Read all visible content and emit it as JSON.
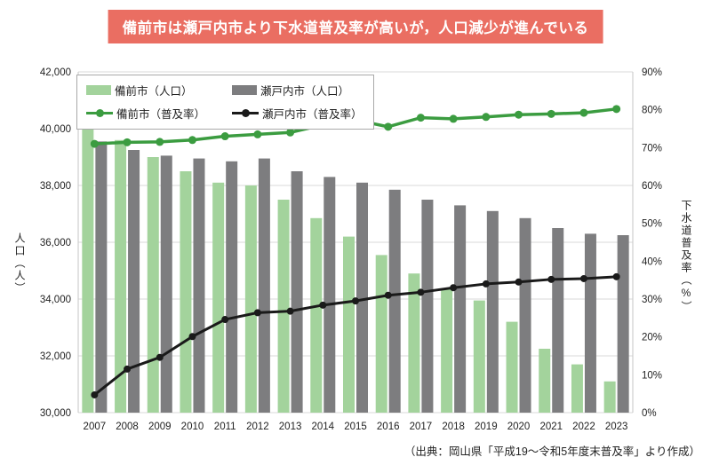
{
  "title": "備前市は瀬戸内市より下水道普及率が高いが，人口減少が進んでいる",
  "source": "（出典：岡山県「平成19～令和5年度末普及率」より作成）",
  "colors": {
    "banner_bg": "#ea6e62",
    "banner_text": "#ffffff",
    "bizen_bar": "#a3d39c",
    "setouchi_bar": "#7d7d7f",
    "bizen_line": "#3b9c40",
    "setouchi_line": "#1a1a1a",
    "gridline": "#d9d9d9",
    "axis_line": "#c6c6c6",
    "tick_text": "#222222"
  },
  "legend": {
    "items": [
      {
        "label": "備前市（人口）",
        "type": "bar"
      },
      {
        "label": "瀬戸内市（人口）",
        "type": "bar"
      },
      {
        "label": "備前市（普及率）",
        "type": "line"
      },
      {
        "label": "瀬戸内市（普及率）",
        "type": "line"
      }
    ]
  },
  "chart_data": {
    "type": "bar",
    "subtype": "bar-line-combo",
    "categories": [
      2007,
      2008,
      2009,
      2010,
      2011,
      2012,
      2013,
      2014,
      2015,
      2016,
      2017,
      2018,
      2019,
      2020,
      2021,
      2022,
      2023
    ],
    "series": [
      {
        "name": "備前市（人口）",
        "type": "bar",
        "axis": "left",
        "color": "#a3d39c",
        "values": [
          40050,
          39600,
          39000,
          38500,
          38100,
          38000,
          37500,
          36850,
          36200,
          35550,
          34900,
          34350,
          33950,
          33200,
          32250,
          31700,
          31100
        ]
      },
      {
        "name": "瀬戸内市（人口）",
        "type": "bar",
        "axis": "left",
        "color": "#7d7d7f",
        "values": [
          39550,
          39250,
          39050,
          38950,
          38850,
          38950,
          38500,
          38300,
          38100,
          37850,
          37500,
          37300,
          37100,
          36850,
          36500,
          36300,
          36250
        ]
      },
      {
        "name": "備前市（普及率）",
        "type": "line",
        "axis": "right",
        "color": "#3b9c40",
        "values": [
          71.0,
          71.4,
          71.5,
          72.0,
          73.0,
          73.5,
          74.0,
          76.0,
          77.3,
          75.5,
          77.9,
          77.6,
          78.1,
          78.7,
          78.9,
          79.2,
          80.2
        ]
      },
      {
        "name": "瀬戸内市（普及率）",
        "type": "line",
        "axis": "right",
        "color": "#1a1a1a",
        "values": [
          4.7,
          11.5,
          14.6,
          20.1,
          24.6,
          26.4,
          26.8,
          28.4,
          29.5,
          31.0,
          31.8,
          33.0,
          34.0,
          34.5,
          35.2,
          35.4,
          35.9
        ]
      }
    ],
    "left_axis": {
      "label": "人口（人）",
      "min": 30000,
      "max": 42000,
      "step": 2000
    },
    "right_axis": {
      "label": "下水道普及率（%）",
      "min": 0,
      "max": 90,
      "step": 10
    },
    "grid": true,
    "legend_position": "top-left-inside"
  }
}
